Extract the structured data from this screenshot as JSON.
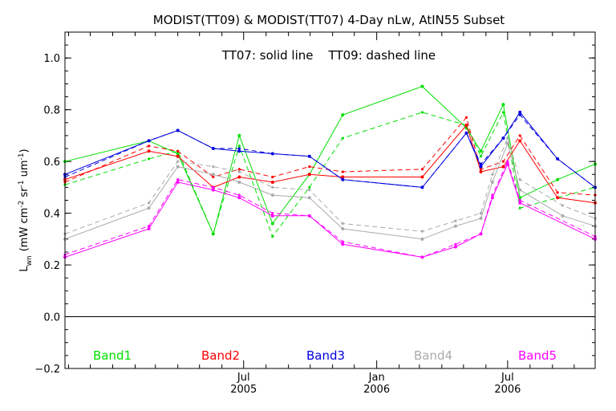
{
  "chart_data": {
    "type": "line",
    "title": "MODIST(TT09) & MODIST(TT07) 4-Day nLw, AtIN55 Subset",
    "annotation": "TT07: solid line    TT09: dashed line",
    "ylabel_main": "L",
    "ylabel_sub": "wn",
    "ylabel_units": "(mW cm",
    "ylabel_units_sup1": "-2",
    "ylabel_units_mid": " sr",
    "ylabel_units_sup2": "-1",
    "ylabel_units_end": " um",
    "ylabel_units_sup3": "-1",
    "ylabel_units_close": ")",
    "xlim": [
      "2004-10-27",
      "2006-10-30"
    ],
    "ylim": [
      -0.2,
      1.1
    ],
    "y_ticks": [
      -0.2,
      0.0,
      0.2,
      0.4,
      0.6,
      0.8,
      1.0
    ],
    "y_tick_labels": [
      "−0.2",
      "0.0",
      "0.2",
      "0.4",
      "0.6",
      "0.8",
      "1.0"
    ],
    "x_ticks": [
      {
        "date": "2005-07-01",
        "month": "Jul",
        "year": "2005"
      },
      {
        "date": "2006-01-01",
        "month": "Jan",
        "year": "2006"
      },
      {
        "date": "2006-07-01",
        "month": "Jul",
        "year": "2006"
      }
    ],
    "x_minor_ticks": [
      "2004-11-01",
      "2004-12-01",
      "2005-01-01",
      "2005-02-01",
      "2005-03-01",
      "2005-04-01",
      "2005-05-01",
      "2005-06-01",
      "2005-08-01",
      "2005-09-01",
      "2005-10-01",
      "2005-11-01",
      "2005-12-01",
      "2006-02-01",
      "2006-03-01",
      "2006-04-01",
      "2006-05-01",
      "2006-06-01",
      "2006-08-01",
      "2006-09-01",
      "2006-10-01"
    ],
    "zero_line": true,
    "x": [
      "2004-10-27",
      "2005-02-20",
      "2005-04-01",
      "2005-05-20",
      "2005-06-25",
      "2005-08-10",
      "2005-09-30",
      "2005-11-15",
      "2006-03-05",
      "2006-05-05",
      "2006-05-25",
      "2006-06-25",
      "2006-07-18",
      "2006-09-08",
      "2006-10-30"
    ],
    "series": [
      {
        "name": "Band1",
        "color": "#00e000",
        "solid": [
          0.6,
          0.68,
          0.63,
          0.32,
          0.7,
          0.36,
          0.55,
          0.78,
          0.89,
          0.73,
          0.64,
          0.82,
          0.46,
          0.53,
          0.59
        ],
        "dashed": [
          0.51,
          0.61,
          0.64,
          0.32,
          0.66,
          0.31,
          0.5,
          0.69,
          0.79,
          0.74,
          0.62,
          0.79,
          0.42,
          0.46,
          0.5
        ],
        "dashed_x": [
          "2004-10-27",
          "2005-02-20",
          "2005-04-01",
          "2005-05-20",
          "2005-06-25",
          "2005-08-10",
          "2005-09-30",
          "2005-11-15",
          "2006-03-05",
          "2006-05-05",
          "2006-05-25",
          "2006-06-25",
          "2006-07-18",
          "2006-09-08",
          "2006-10-30"
        ]
      },
      {
        "name": "Band2",
        "color": "#ff0000",
        "solid": [
          0.53,
          0.64,
          0.62,
          0.5,
          0.54,
          0.52,
          0.55,
          0.54,
          0.54,
          0.74,
          0.56,
          0.58,
          0.68,
          0.46,
          0.44
        ],
        "dashed": [
          0.52,
          0.66,
          0.64,
          0.54,
          0.57,
          0.54,
          0.58,
          0.56,
          0.57,
          0.77,
          0.57,
          0.6,
          0.7,
          0.48,
          0.47
        ],
        "dashed_x": [
          "2004-10-27",
          "2005-02-20",
          "2005-04-01",
          "2005-05-20",
          "2005-06-25",
          "2005-08-10",
          "2005-09-30",
          "2005-11-15",
          "2006-03-05",
          "2006-05-05",
          "2006-05-25",
          "2006-06-25",
          "2006-07-18",
          "2006-09-08",
          "2006-10-30"
        ]
      },
      {
        "name": "Band3",
        "color": "#0000e0",
        "solid": [
          0.55,
          0.68,
          0.72,
          0.65,
          0.64,
          0.63,
          0.62,
          0.53,
          0.5,
          0.71,
          0.58,
          0.69,
          0.79,
          0.61,
          0.5
        ],
        "dashed": [
          0.54,
          0.68,
          0.72,
          0.65,
          0.65,
          0.63,
          0.62,
          0.53,
          0.5,
          0.71,
          0.59,
          0.69,
          0.78,
          0.61,
          0.5
        ],
        "dashed_x": [
          "2004-10-27",
          "2005-02-20",
          "2005-04-01",
          "2005-05-20",
          "2005-06-25",
          "2005-08-10",
          "2005-09-30",
          "2005-11-15",
          "2006-03-05",
          "2006-05-05",
          "2006-05-25",
          "2006-06-25",
          "2006-07-18",
          "2006-09-08",
          "2006-10-30"
        ]
      },
      {
        "name": "Band4",
        "color": "#aaaaaa",
        "solid": [
          0.3,
          0.42,
          0.58,
          0.55,
          0.52,
          0.47,
          0.46,
          0.34,
          0.3,
          0.35,
          0.38,
          0.52,
          0.67,
          0.49,
          0.39,
          0.35
        ],
        "dashed": [
          0.32,
          0.44,
          0.6,
          0.58,
          0.56,
          0.5,
          0.49,
          0.36,
          0.33,
          0.37,
          0.4,
          0.55,
          0.69,
          0.53,
          0.43,
          0.38
        ],
        "x": [
          "2004-10-27",
          "2005-02-20",
          "2005-04-01",
          "2005-05-20",
          "2005-06-25",
          "2005-08-10",
          "2005-09-30",
          "2005-11-15",
          "2006-03-05",
          "2006-04-20",
          "2006-05-25",
          "2006-06-10",
          "2006-07-01",
          "2006-07-18",
          "2006-09-15",
          "2006-10-30"
        ]
      },
      {
        "name": "Band5",
        "color": "#ff00ff",
        "solid": [
          0.23,
          0.34,
          0.52,
          0.49,
          0.46,
          0.39,
          0.39,
          0.28,
          0.23,
          0.27,
          0.32,
          0.46,
          0.59,
          0.44,
          0.3
        ],
        "dashed": [
          0.24,
          0.35,
          0.53,
          0.5,
          0.47,
          0.4,
          0.39,
          0.29,
          0.23,
          0.28,
          0.32,
          0.47,
          0.6,
          0.45,
          0.31
        ],
        "x": [
          "2004-10-27",
          "2005-02-20",
          "2005-04-01",
          "2005-05-20",
          "2005-06-25",
          "2005-08-10",
          "2005-09-30",
          "2005-11-15",
          "2006-03-05",
          "2006-04-20",
          "2006-05-25",
          "2006-06-10",
          "2006-07-01",
          "2006-07-18",
          "2006-10-30"
        ]
      }
    ],
    "legend_placement": "bottom"
  }
}
